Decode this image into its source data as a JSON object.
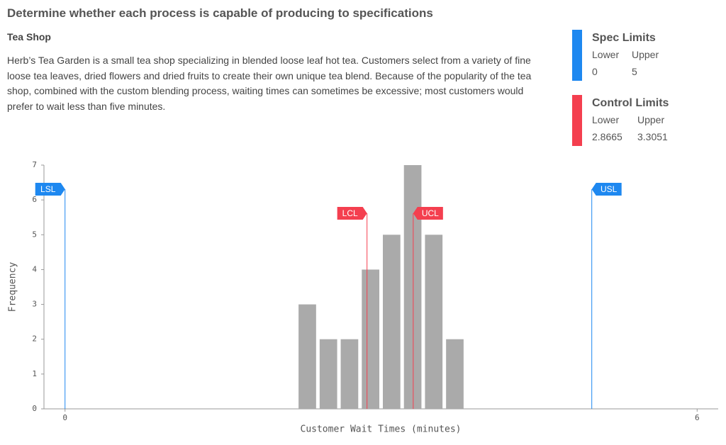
{
  "header": {
    "title": "Determine whether each process is capable of producing to specifications",
    "subtitle": "Tea Shop",
    "description": "Herb’s Tea Garden is a small tea shop specializing in blended loose leaf hot tea. Customers select from a variety of fine loose tea leaves, dried flowers and dried fruits to create their own unique tea blend. Because of the popularity of the tea shop, combined with the custom blending process, waiting times can sometimes be excessive; most customers would prefer to wait less than five minutes."
  },
  "panels": [
    {
      "title": "Spec Limits",
      "lower_label": "Lower",
      "upper_label": "Upper"
    },
    {
      "title": "Control Limits",
      "lower_label": "Lower",
      "upper_label": "Upper"
    }
  ],
  "chart_data": {
    "type": "histogram",
    "xlabel": "Customer Wait Times (minutes)",
    "ylabel": "Frequency",
    "bins": [
      2.2,
      2.4,
      2.6,
      2.8,
      3.0,
      3.2,
      3.4,
      3.6,
      3.8
    ],
    "values": [
      3,
      2,
      2,
      4,
      5,
      7,
      5,
      2
    ],
    "color": "#aaaaaa",
    "xlim": [
      -0.2,
      6.2
    ],
    "xticks": [
      0,
      6
    ],
    "ylim": [
      0,
      7
    ],
    "yticks": [
      0,
      1,
      2,
      3,
      4,
      5,
      6,
      7
    ],
    "spec_limits": {
      "color": "#1e88f0",
      "lines": [
        {
          "label": "LSL",
          "value": 0
        },
        {
          "label": "USL",
          "value": 5
        }
      ]
    },
    "control_limits": {
      "color": "#f43f4f",
      "lines": [
        {
          "label": "LCL",
          "value": 2.8665
        },
        {
          "label": "UCL",
          "value": 3.3051
        }
      ]
    }
  }
}
